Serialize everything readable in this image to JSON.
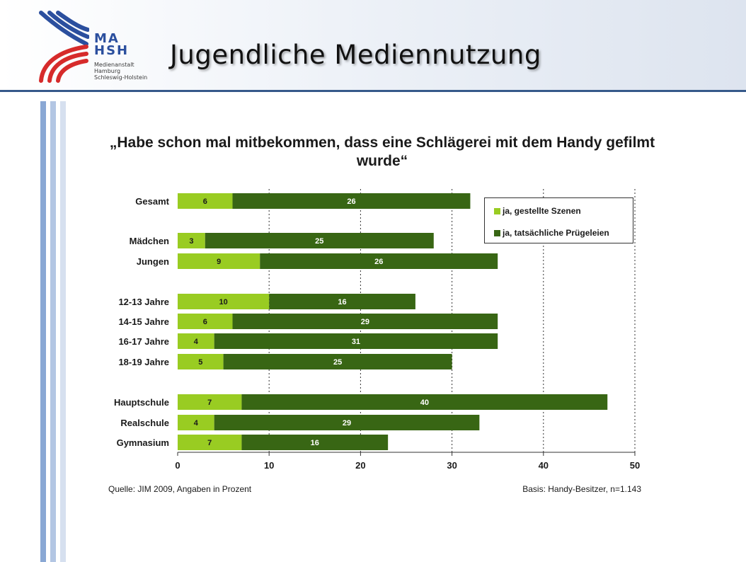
{
  "header": {
    "title": "Jugendliche Mediennutzung",
    "logo": {
      "abbreviation": [
        "MA",
        "HSH"
      ],
      "name_lines": [
        "Medienanstalt",
        "Hamburg",
        "Schleswig-Holstein"
      ]
    }
  },
  "chart_data": {
    "type": "bar",
    "orientation": "horizontal",
    "stacked": true,
    "title": "„Habe schon mal mitbekommen, dass eine Schlägerei mit dem Handy gefilmt wurde“",
    "categories": [
      "Gesamt",
      "Mädchen",
      "Jungen",
      "12-13 Jahre",
      "14-15 Jahre",
      "16-17 Jahre",
      "18-19 Jahre",
      "Hauptschule",
      "Realschule",
      "Gymnasium"
    ],
    "series": [
      {
        "name": "ja, gestellte Szenen",
        "color": "#99cc22",
        "values": [
          6,
          3,
          9,
          10,
          6,
          4,
          5,
          7,
          4,
          7
        ]
      },
      {
        "name": "ja, tatsächliche Prügeleien",
        "color": "#386614",
        "values": [
          26,
          25,
          26,
          16,
          29,
          31,
          25,
          40,
          29,
          16
        ]
      }
    ],
    "xlim": [
      0,
      50
    ],
    "xticks": [
      0,
      10,
      20,
      30,
      40,
      50
    ],
    "xlabel": "",
    "ylabel": "",
    "grid": "vertical dotted lines",
    "legend_position": "top-right",
    "source": "Quelle: JIM 2009, Angaben in Prozent",
    "basis": "Basis: Handy-Besitzer, n=1.143"
  }
}
